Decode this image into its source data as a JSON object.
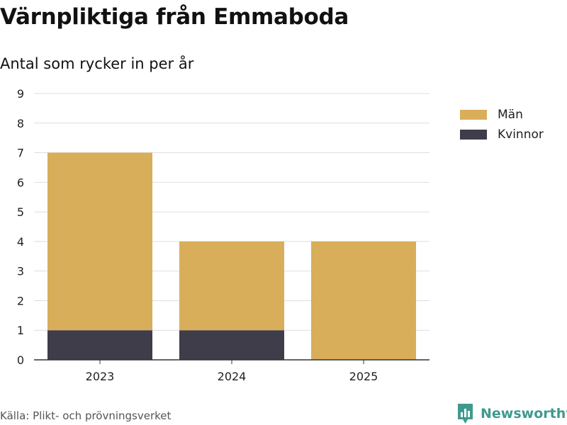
{
  "chart_data": {
    "type": "bar",
    "stacked": true,
    "title": "Värnpliktiga från Emmaboda",
    "subtitle": "Antal som rycker in per år",
    "xlabel": "",
    "ylabel": "",
    "categories": [
      "2023",
      "2024",
      "2025"
    ],
    "series": [
      {
        "name": "Kvinnor",
        "values": [
          1,
          1,
          0
        ],
        "color": "#3f3d4a"
      },
      {
        "name": "Män",
        "values": [
          6,
          3,
          4
        ],
        "color": "#d9ae5a"
      }
    ],
    "ylim": [
      0,
      9
    ],
    "yticks": [
      "0",
      "1",
      "2",
      "3",
      "4",
      "5",
      "6",
      "7",
      "8",
      "9"
    ],
    "grid": true,
    "legend": {
      "position": "right",
      "entries": [
        "Män",
        "Kvinnor"
      ]
    },
    "source": "Källa: Plikt- och prövningsverket"
  },
  "brand": {
    "name": "Newsworthy",
    "color": "#3f9a8e"
  }
}
